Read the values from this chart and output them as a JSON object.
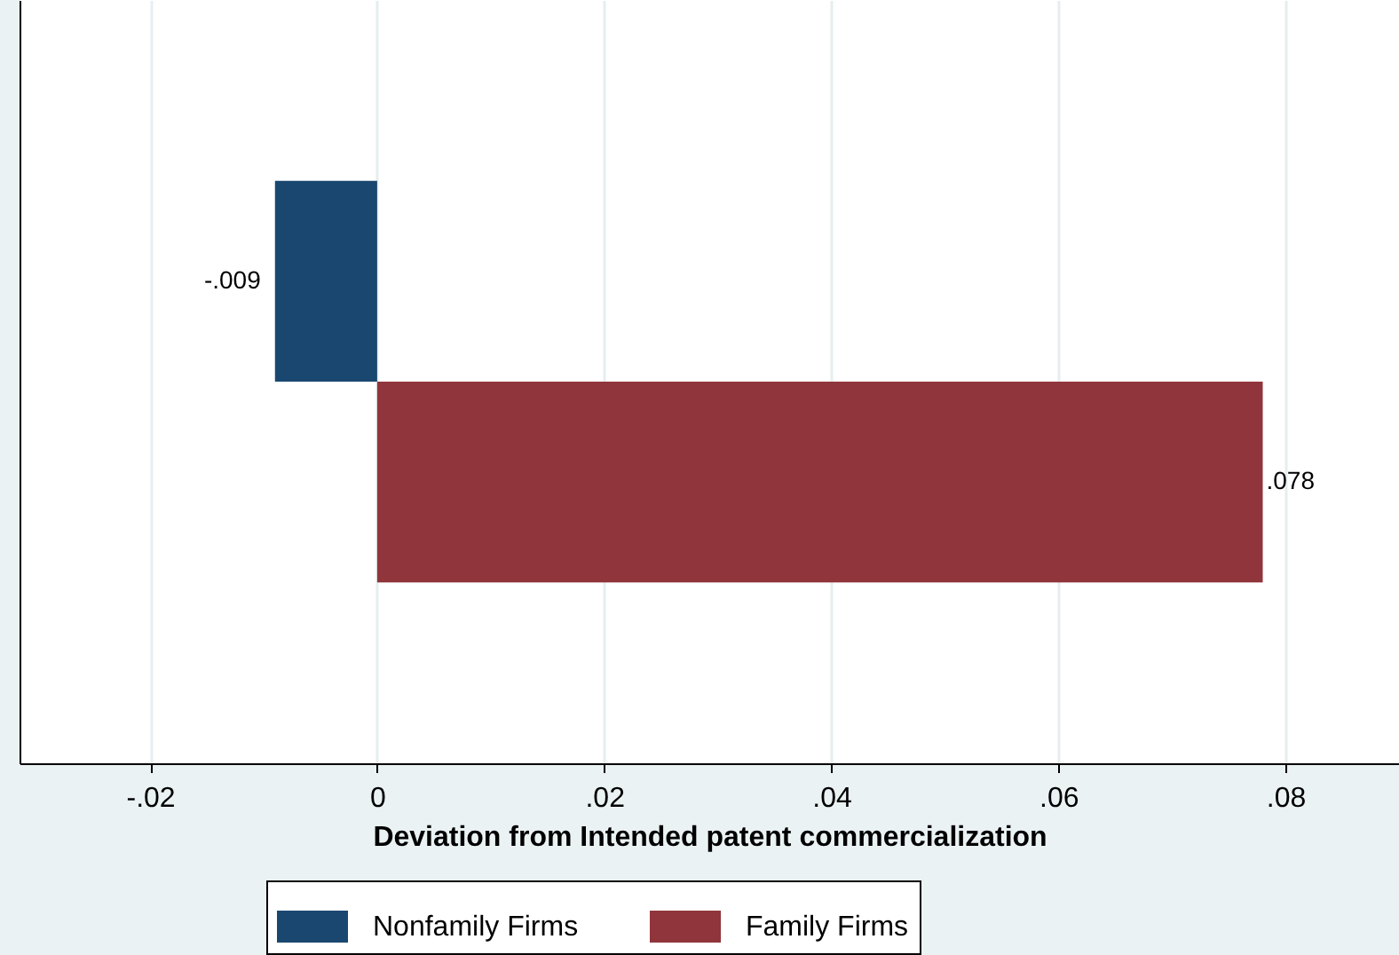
{
  "chart_data": {
    "type": "bar",
    "orientation": "horizontal",
    "xlabel": "Deviation from Intended patent commercialization",
    "categories": [
      null
    ],
    "series": [
      {
        "name": "Nonfamily Firms",
        "color": "#1a476f",
        "values": [
          -0.009
        ],
        "value_labels": [
          "-.009"
        ]
      },
      {
        "name": "Family Firms",
        "color": "#90353b",
        "values": [
          0.078
        ],
        "value_labels": [
          ".078"
        ]
      }
    ],
    "xlim": [
      -0.0315,
      0.09
    ],
    "xticks": [
      {
        "value": -0.02,
        "label": "-.02"
      },
      {
        "value": 0,
        "label": "0"
      },
      {
        "value": 0.02,
        "label": ".02"
      },
      {
        "value": 0.04,
        "label": ".04"
      },
      {
        "value": 0.06,
        "label": ".06"
      },
      {
        "value": 0.08,
        "label": ".08"
      }
    ],
    "grid": "x",
    "legend": "bottom"
  }
}
